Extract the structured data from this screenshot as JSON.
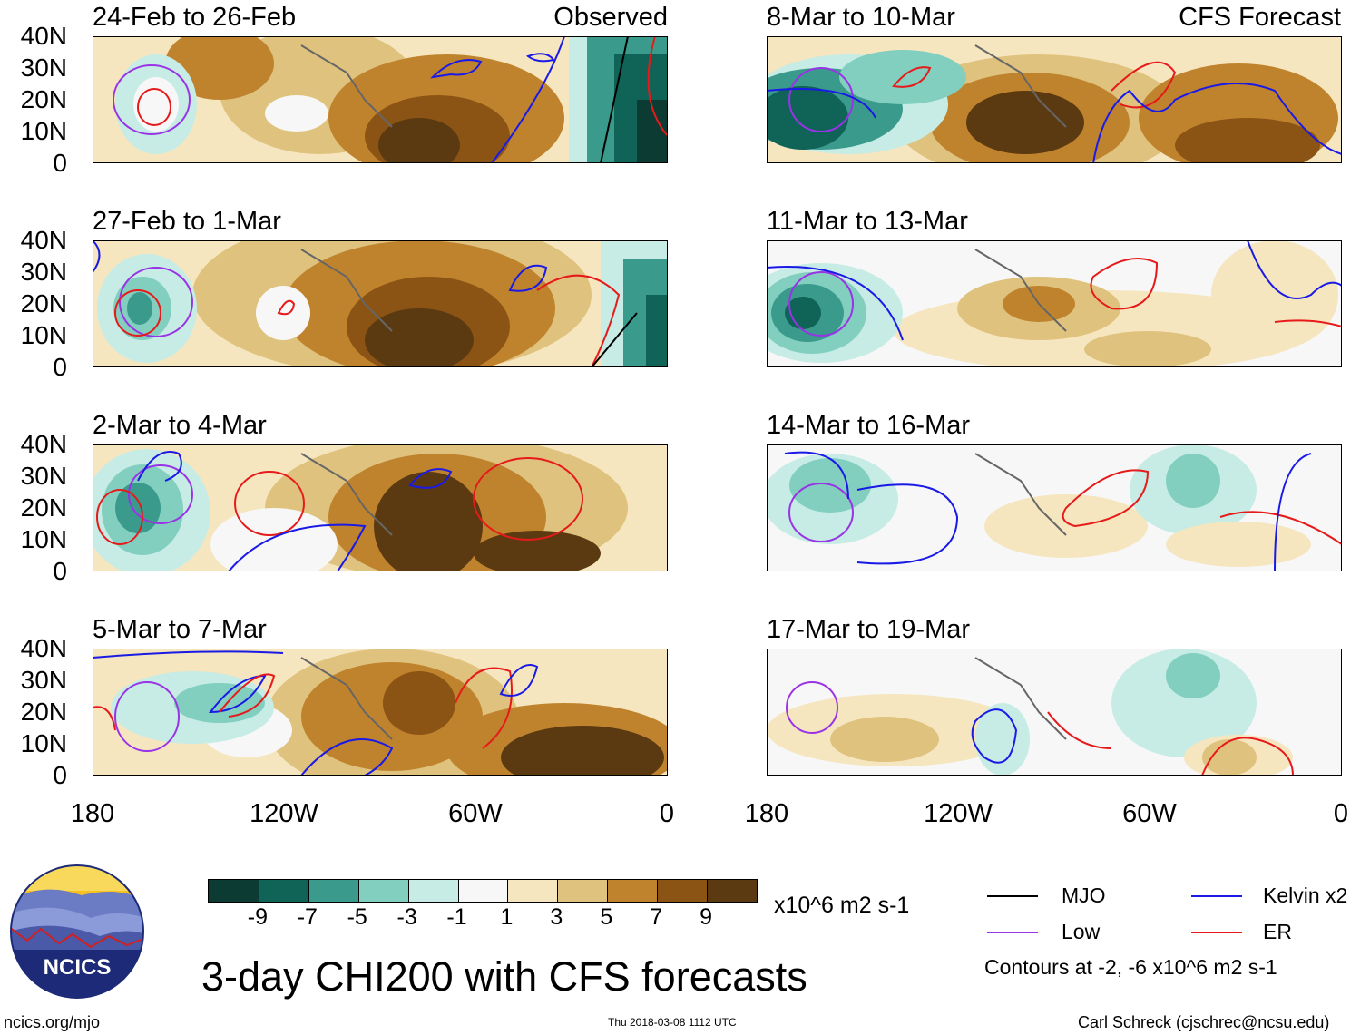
{
  "panels": [
    {
      "title": "24-Feb to 26-Feb",
      "tag": "Observed"
    },
    {
      "title": "27-Feb to 1-Mar",
      "tag": ""
    },
    {
      "title": "2-Mar to 4-Mar",
      "tag": ""
    },
    {
      "title": "5-Mar to 7-Mar",
      "tag": ""
    },
    {
      "title": "8-Mar to 10-Mar",
      "tag": "CFS Forecast"
    },
    {
      "title": "11-Mar to 13-Mar",
      "tag": ""
    },
    {
      "title": "14-Mar to 16-Mar",
      "tag": ""
    },
    {
      "title": "17-Mar to 19-Mar",
      "tag": ""
    }
  ],
  "axes": {
    "y_labels": [
      "40N",
      "30N",
      "20N",
      "10N",
      "0"
    ],
    "x_labels": [
      "180",
      "120W",
      "60W",
      "0"
    ]
  },
  "colorbar": {
    "colors": [
      "#0b3b32",
      "#0f6357",
      "#3a9a8c",
      "#82cfc0",
      "#c6ece5",
      "#f7f7f7",
      "#f6e6bf",
      "#dfc27d",
      "#c0832d",
      "#8b5414",
      "#5b3a12"
    ],
    "labels": [
      "-9",
      "-7",
      "-5",
      "-3",
      "-1",
      "1",
      "3",
      "5",
      "7",
      "9"
    ],
    "units": "x10^6 m2 s-1"
  },
  "title": "3-day CHI200 with CFS forecasts",
  "legend": {
    "items": [
      {
        "label": "MJO",
        "color": "#000000"
      },
      {
        "label": "Kelvin x2",
        "color": "#1a1ae6"
      },
      {
        "label": "Low",
        "color": "#9933e6"
      },
      {
        "label": "ER",
        "color": "#e61a1a"
      }
    ],
    "contours_note": "Contours at -2, -6 x10^6 m2 s-1"
  },
  "footer": {
    "left": "ncics.org/mjo",
    "center": "Thu 2018-03-08 1112 UTC",
    "right": "Carl Schreck (cjschrec@ncsu.edu)"
  },
  "logo": {
    "text": "NCICS"
  }
}
